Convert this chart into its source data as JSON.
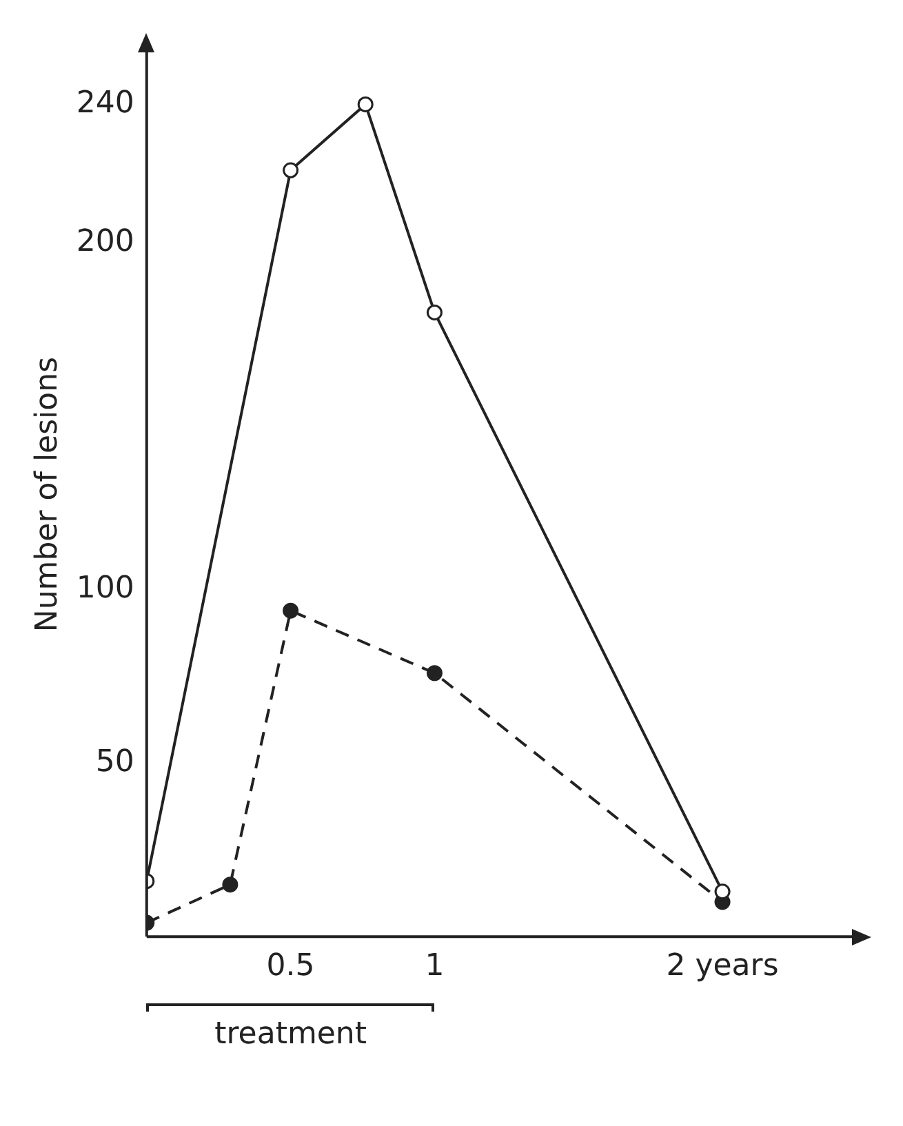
{
  "chart_data": {
    "type": "line",
    "ylabel": "Number of lesions",
    "xlim": [
      0,
      2.45
    ],
    "xticks": [
      0.5,
      1,
      {
        "value": 2,
        "label": "2 years"
      }
    ],
    "ylim": [
      0,
      255
    ],
    "yticks": [
      50,
      100,
      200,
      240
    ],
    "grid": false,
    "legend": false,
    "marker": "circle",
    "series": [
      {
        "color": "#222222",
        "line_style": "solid",
        "x": [
          0,
          0.5,
          0.76,
          1,
          2
        ],
        "values": [
          16,
          221,
          240,
          180,
          13
        ]
      },
      {
        "color": "#222222",
        "line_style": "dashed",
        "x": [
          0,
          0.29,
          0.5,
          1,
          2
        ],
        "values": [
          4,
          15,
          94,
          76,
          10
        ]
      }
    ],
    "annotations": [
      "treatment"
    ]
  }
}
